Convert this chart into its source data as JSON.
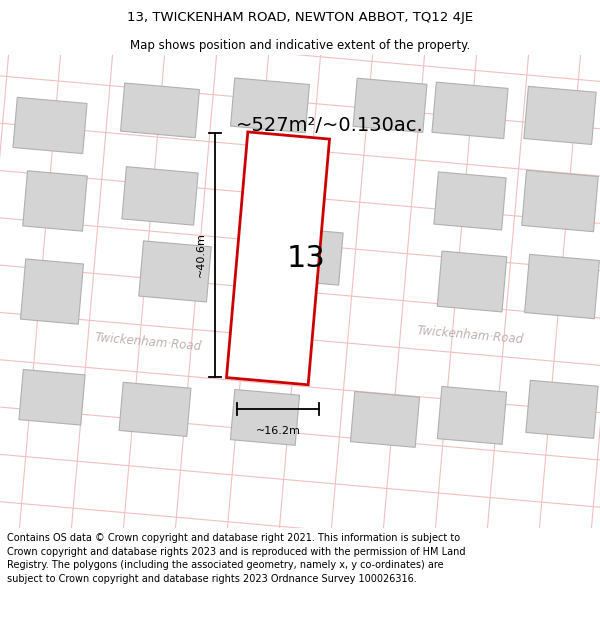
{
  "title": "13, TWICKENHAM ROAD, NEWTON ABBOT, TQ12 4JE",
  "subtitle": "Map shows position and indicative extent of the property.",
  "area_label": "~527m²/~0.130ac.",
  "width_label": "~16.2m",
  "height_label": "~40.6m",
  "property_number": "13",
  "road_name_left": "Twickenham·Road",
  "road_name_right": "Twickenham·Road",
  "footer": "Contains OS data © Crown copyright and database right 2021. This information is subject to Crown copyright and database rights 2023 and is reproduced with the permission of HM Land Registry. The polygons (including the associated geometry, namely x, y co-ordinates) are subject to Crown copyright and database rights 2023 Ordnance Survey 100026316.",
  "bg_color": "#ffffff",
  "map_bg": "#faf5f5",
  "grid_line_color": "#f2c0c0",
  "building_fill": "#d4d4d4",
  "building_edge": "#b0b0b0",
  "property_outline": "#cc0000",
  "road_label_color": "#c0b0b0",
  "title_fontsize": 9.5,
  "subtitle_fontsize": 8.5,
  "area_label_fontsize": 14,
  "dim_label_fontsize": 8,
  "footer_fontsize": 7,
  "prop_number_fontsize": 22
}
